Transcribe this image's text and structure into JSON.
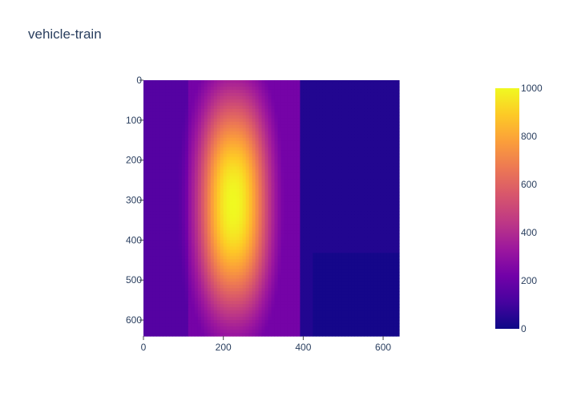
{
  "chart_data": {
    "type": "heatmap",
    "title": "vehicle-train",
    "xlabel": "",
    "ylabel": "",
    "xlim": [
      0,
      640
    ],
    "ylim": [
      640,
      0
    ],
    "x_ticks": [
      0,
      200,
      400,
      600
    ],
    "y_ticks": [
      0,
      100,
      200,
      300,
      400,
      500,
      600
    ],
    "x_tick_labels": [
      "0",
      "200",
      "400",
      "600"
    ],
    "y_tick_labels": [
      "0",
      "100",
      "200",
      "300",
      "400",
      "500",
      "600"
    ],
    "y_reversed": true,
    "colorscale": "plasma",
    "color_range": [
      0,
      1000
    ],
    "colorbar_ticks": [
      0,
      200,
      400,
      600,
      800,
      1000
    ],
    "colorbar_tick_labels": [
      "0",
      "200",
      "400",
      "600",
      "800",
      "1000"
    ],
    "legend": "colorbar-right",
    "grid": false,
    "hotspot": {
      "center_x": 225,
      "center_y": 310,
      "peak": 1000,
      "spread_x": 85,
      "spread_y": 260
    },
    "background_levels": {
      "left_region": 150,
      "middle_region": 230,
      "right_region": 40,
      "lower_right_region": 15
    }
  }
}
